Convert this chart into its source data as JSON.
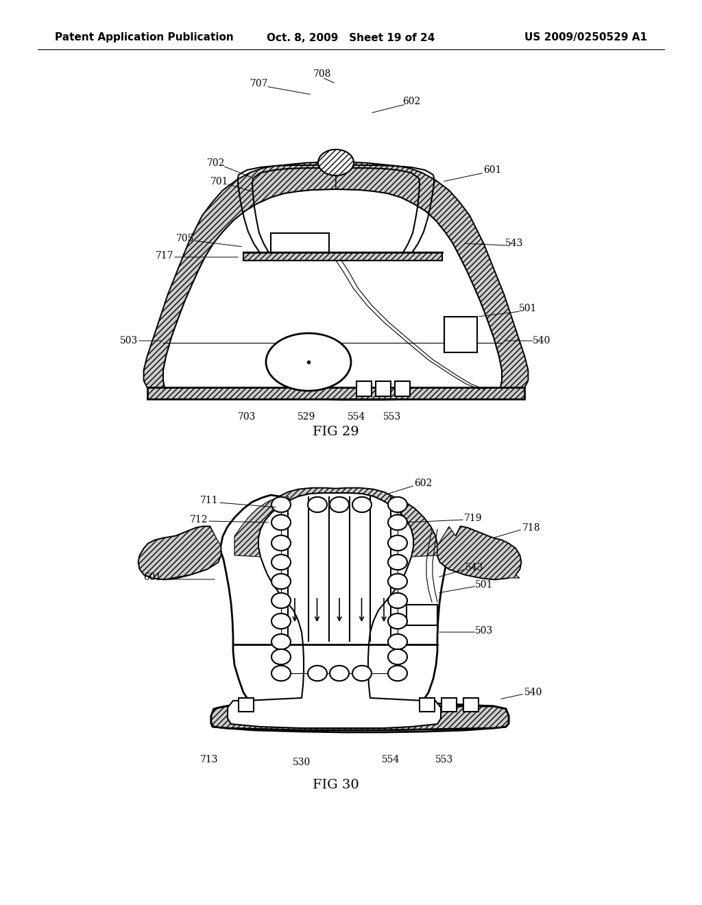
{
  "background_color": "#ffffff",
  "header": {
    "left_text": "Patent Application Publication",
    "center_text": "Oct. 8, 2009   Sheet 19 of 24",
    "right_text": "US 2009/0250529 A1"
  }
}
